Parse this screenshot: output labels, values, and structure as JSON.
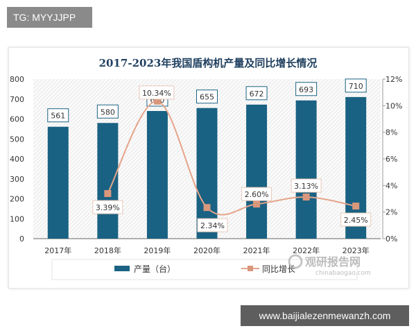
{
  "tag_label": "TG: MYYJJPP",
  "watermark_url": "www.baijialezenmewanzh.com",
  "logo": {
    "text_cn": "观研报告网",
    "text_en": "chinabaogao.com"
  },
  "colors": {
    "bar": "#1a6283",
    "line": "#e6a48a",
    "marker": "#d9977c",
    "title": "#1f3f5f"
  },
  "chart_data": {
    "type": "bar+line",
    "title": "2017-2023年我国盾构机产量及同比增长情况",
    "categories": [
      "2017年",
      "2018年",
      "2019年",
      "2020年",
      "2021年",
      "2022年",
      "2023年"
    ],
    "series": [
      {
        "name": "产量（台）",
        "type": "bar",
        "axis": "left",
        "values": [
          561,
          580,
          640,
          655,
          672,
          693,
          710
        ],
        "labels": [
          "561",
          "580",
          "640",
          "655",
          "672",
          "693",
          "710"
        ]
      },
      {
        "name": "同比增长",
        "type": "line",
        "axis": "right",
        "values": [
          null,
          3.39,
          10.34,
          2.34,
          2.6,
          3.13,
          2.45
        ],
        "labels": [
          "",
          "3.39%",
          "10.34%",
          "2.34%",
          "2.60%",
          "3.13%",
          "2.45%"
        ]
      }
    ],
    "y_left": {
      "range": [
        0,
        800
      ],
      "ticks": [
        "0",
        "100",
        "200",
        "300",
        "400",
        "500",
        "600",
        "700",
        "800"
      ]
    },
    "y_right": {
      "range": [
        0,
        12
      ],
      "ticks": [
        "0%",
        "2%",
        "4%",
        "6%",
        "8%",
        "10%",
        "12%"
      ]
    },
    "grid": false,
    "legend": "bottom"
  }
}
